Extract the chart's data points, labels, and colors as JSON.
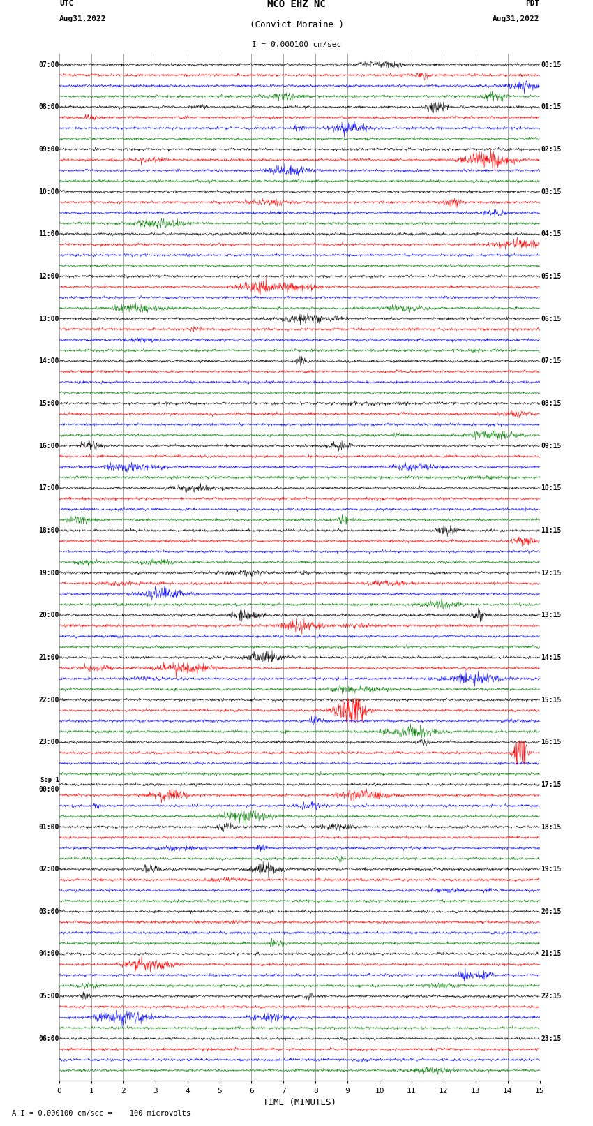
{
  "title_line1": "MCO EHZ NC",
  "title_line2": "(Convict Moraine )",
  "scale_label": "I = 0.000100 cm/sec",
  "left_header_1": "UTC",
  "left_header_2": "Aug31,2022",
  "right_header_1": "PDT",
  "right_header_2": "Aug31,2022",
  "bottom_label": "TIME (MINUTES)",
  "bottom_note": "A I = 0.000100 cm/sec =    100 microvolts",
  "utc_labels": [
    "07:00",
    "08:00",
    "09:00",
    "10:00",
    "11:00",
    "12:00",
    "13:00",
    "14:00",
    "15:00",
    "16:00",
    "17:00",
    "18:00",
    "19:00",
    "20:00",
    "21:00",
    "22:00",
    "23:00",
    "Sep 1\n00:00",
    "01:00",
    "02:00",
    "03:00",
    "04:00",
    "05:00",
    "06:00"
  ],
  "pdt_labels": [
    "00:15",
    "01:15",
    "02:15",
    "03:15",
    "04:15",
    "05:15",
    "06:15",
    "07:15",
    "08:15",
    "09:15",
    "10:15",
    "11:15",
    "12:15",
    "13:15",
    "14:15",
    "15:15",
    "16:15",
    "17:15",
    "18:15",
    "19:15",
    "20:15",
    "21:15",
    "22:15",
    "23:15"
  ],
  "colors": [
    "black",
    "red",
    "blue",
    "green"
  ],
  "n_hours": 24,
  "traces_per_hour": 4,
  "figsize": [
    8.5,
    16.13
  ],
  "bg_color": "white",
  "amplitude_scale": 0.32,
  "x_ticks": [
    0,
    1,
    2,
    3,
    4,
    5,
    6,
    7,
    8,
    9,
    10,
    11,
    12,
    13,
    14,
    15
  ]
}
